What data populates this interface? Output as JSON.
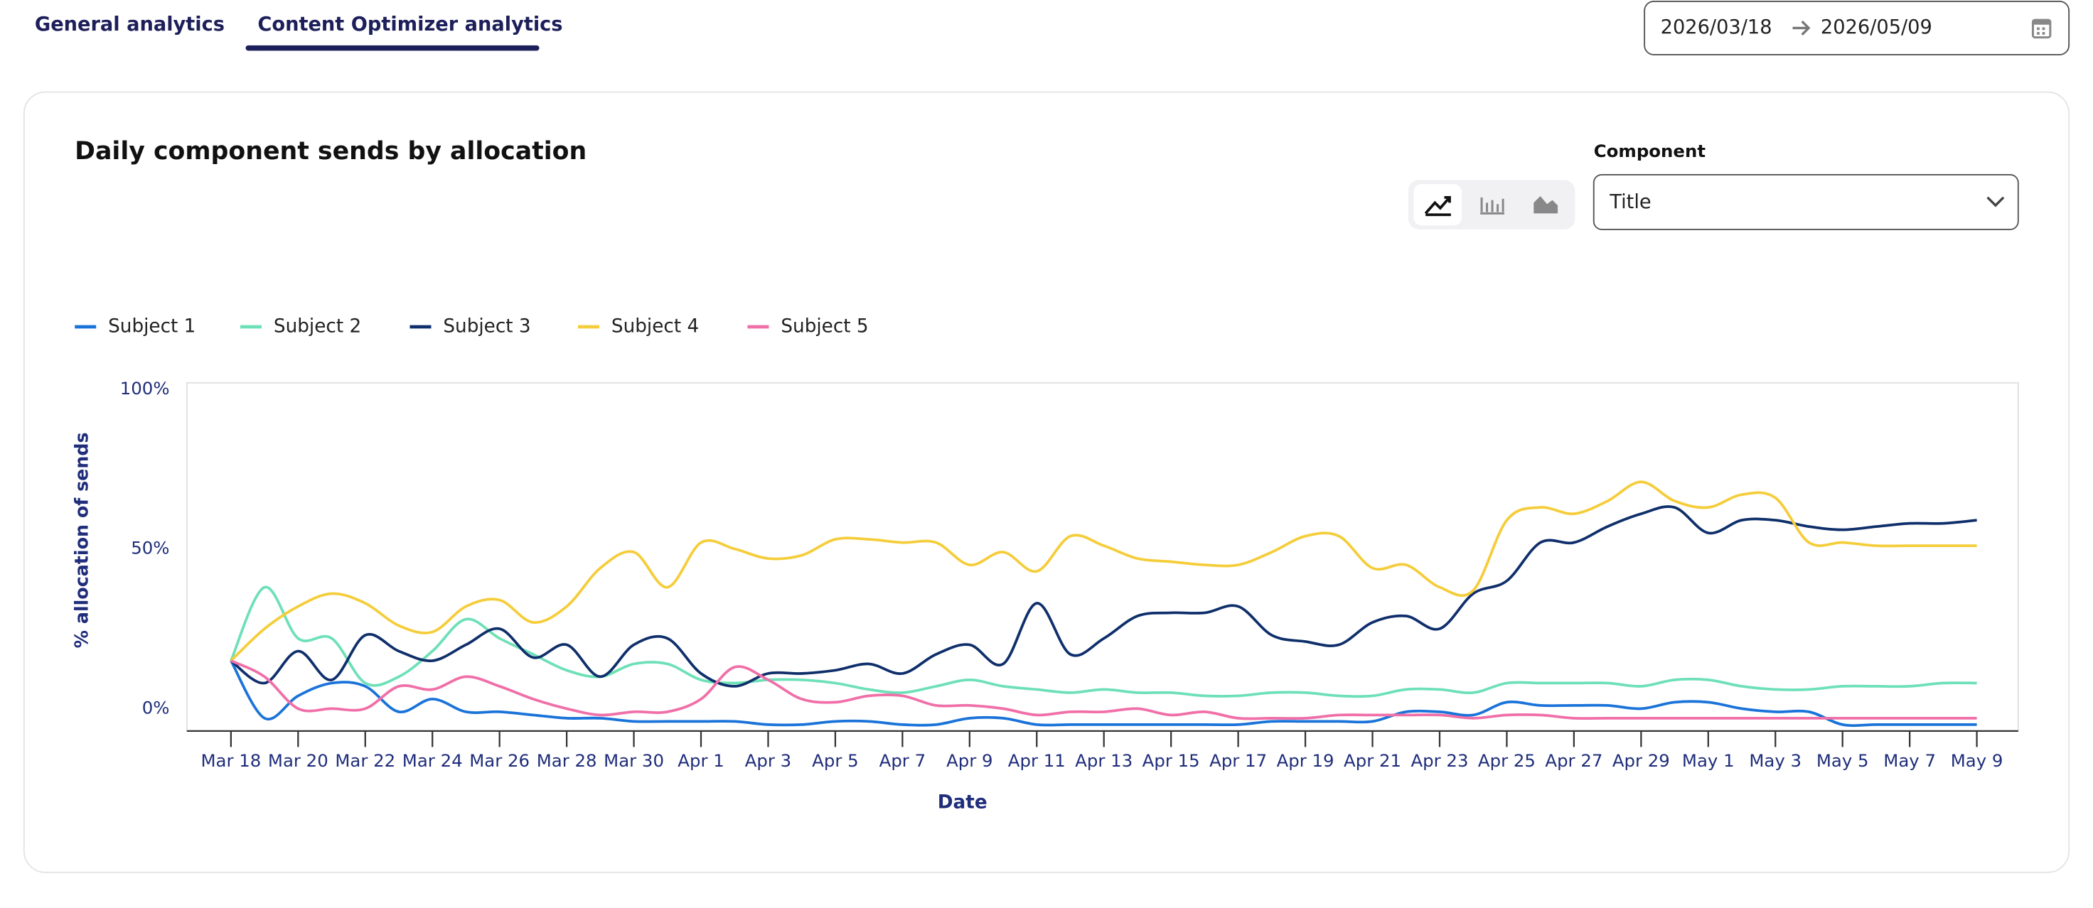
{
  "tabs": [
    "General analytics",
    "Content Optimizer analytics"
  ],
  "date_range": {
    "start": "2026/03/18",
    "end": "2026/05/09"
  },
  "component_filter": {
    "label": "Component",
    "value": "Title"
  },
  "chart_data": {
    "type": "line",
    "title": "Daily component sends by allocation",
    "x_label": "Date",
    "y_label": "% allocation of sends",
    "categories": [
      "Mar 18",
      null,
      "Mar 20",
      null,
      "Mar 22",
      null,
      "Mar 24",
      null,
      "Mar 26",
      null,
      "Mar 28",
      null,
      "Mar 30",
      null,
      "Apr 1",
      null,
      "Apr 3",
      null,
      "Apr 5",
      null,
      "Apr 7",
      null,
      "Apr 9",
      null,
      "Apr 11",
      null,
      "Apr 13",
      null,
      "Apr 15",
      null,
      "Apr 17",
      null,
      "Apr 19",
      null,
      "Apr 21",
      null,
      "Apr 23",
      null,
      "Apr 25",
      null,
      "Apr 27",
      null,
      "Apr 29",
      null,
      "May 1",
      null,
      "May 3",
      null,
      "May 5",
      null,
      "May 7",
      null,
      "May 9"
    ],
    "series": [
      {
        "name": "Subject 1",
        "color": "#1a73d9",
        "values": [
          15,
          -3,
          4,
          8,
          7,
          -1,
          3,
          -1,
          -1,
          -2,
          -3,
          -3,
          -4,
          -4,
          -4,
          -4,
          -5,
          -5,
          -4,
          -4,
          -5,
          -5,
          -3,
          -3,
          -5,
          -5,
          -5,
          -5,
          -5,
          -5,
          -5,
          -4,
          -4,
          -4,
          -4,
          -1,
          -1,
          -2,
          2,
          1,
          1,
          1,
          0,
          2,
          2,
          0,
          -1,
          -1,
          -5,
          -5,
          -5,
          -5,
          -5
        ]
      },
      {
        "name": "Subject 2",
        "color": "#6ee0b8",
        "values": [
          15,
          38,
          22,
          22,
          8,
          10,
          18,
          28,
          22,
          17,
          12,
          10,
          14,
          14,
          9,
          8,
          9,
          9,
          8,
          6,
          5,
          7,
          9,
          7,
          6,
          5,
          6,
          5,
          5,
          4,
          4,
          5,
          5,
          4,
          4,
          6,
          6,
          5,
          8,
          8,
          8,
          8,
          7,
          9,
          9,
          7,
          6,
          6,
          7,
          7,
          7,
          8,
          8
        ]
      },
      {
        "name": "Subject 3",
        "color": "#0f2f6b",
        "values": [
          15,
          8,
          18,
          9,
          23,
          18,
          15,
          20,
          25,
          16,
          20,
          10,
          20,
          22,
          11,
          7,
          11,
          11,
          12,
          14,
          11,
          17,
          20,
          14,
          33,
          17,
          22,
          29,
          30,
          30,
          32,
          23,
          21,
          20,
          27,
          29,
          25,
          36,
          40,
          52,
          52,
          57,
          61,
          63,
          55,
          59,
          59,
          57,
          56,
          57,
          58,
          58,
          59
        ]
      },
      {
        "name": "Subject 4",
        "color": "#f5cd3a",
        "values": [
          15,
          25,
          32,
          36,
          33,
          26,
          24,
          32,
          34,
          27,
          32,
          44,
          49,
          38,
          52,
          50,
          47,
          48,
          53,
          53,
          52,
          52,
          45,
          49,
          43,
          54,
          51,
          47,
          46,
          45,
          45,
          49,
          54,
          54,
          44,
          45,
          38,
          37,
          59,
          63,
          61,
          65,
          71,
          65,
          63,
          67,
          66,
          52,
          52,
          51,
          51,
          51,
          51
        ]
      },
      {
        "name": "Subject 5",
        "color": "#f06fa8",
        "values": [
          15,
          10,
          0,
          0,
          0,
          7,
          6,
          10,
          7,
          3,
          0,
          -2,
          -1,
          -1,
          3,
          13,
          9,
          3,
          2,
          4,
          4,
          1,
          1,
          0,
          -2,
          -1,
          -1,
          0,
          -2,
          -1,
          -3,
          -3,
          -3,
          -2,
          -2,
          -2,
          -2,
          -3,
          -2,
          -2,
          -3,
          -3,
          -3,
          -3,
          -3,
          -3,
          -3,
          -3,
          -3,
          -3,
          -3,
          -3,
          -3
        ]
      }
    ],
    "ylim": [
      -7,
      102
    ],
    "yticks": [
      {
        "value": 0,
        "label": "0%"
      },
      {
        "value": 50,
        "label": "50%"
      },
      {
        "value": 100,
        "label": "100%"
      }
    ],
    "legend": "top-left"
  }
}
